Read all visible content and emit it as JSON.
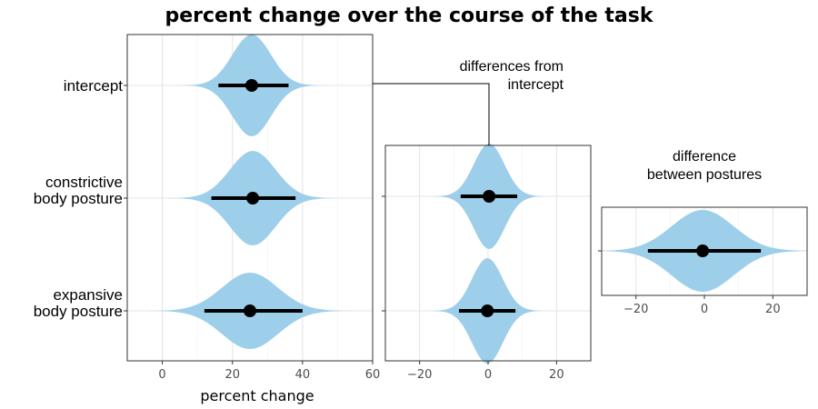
{
  "chart_data": [
    {
      "type": "violin",
      "title": "percent change over the course of the task",
      "xlabel": "percent change",
      "xlim": [
        -10,
        60
      ],
      "xticks": [
        0,
        20,
        40,
        60
      ],
      "rows": [
        {
          "label_lines": [
            "intercept"
          ],
          "center": 25.5,
          "spread": 5.5,
          "interval": [
            16,
            36
          ]
        },
        {
          "label_lines": [
            "constrictive",
            "body posture"
          ],
          "center": 25.8,
          "spread": 6.5,
          "interval": [
            14,
            38
          ]
        },
        {
          "label_lines": [
            "expansive",
            "body posture"
          ],
          "center": 25,
          "spread": 8,
          "interval": [
            12,
            40
          ]
        }
      ]
    },
    {
      "type": "violin",
      "annotation_lines": [
        "differences from",
        "intercept"
      ],
      "xlim": [
        -30,
        30
      ],
      "xticks": [
        -20,
        0,
        20
      ],
      "rows": [
        {
          "center": 0.3,
          "spread": 4.5,
          "interval": [
            -8,
            8.5
          ]
        },
        {
          "center": -0.2,
          "spread": 4.5,
          "interval": [
            -8.5,
            8
          ]
        }
      ]
    },
    {
      "type": "violin",
      "annotation_lines": [
        "difference",
        "between postures"
      ],
      "xlim": [
        -30,
        30
      ],
      "xticks": [
        -20,
        0,
        20
      ],
      "rows": [
        {
          "center": -0.5,
          "spread": 9,
          "interval": [
            -16.5,
            16.5
          ]
        }
      ]
    }
  ]
}
